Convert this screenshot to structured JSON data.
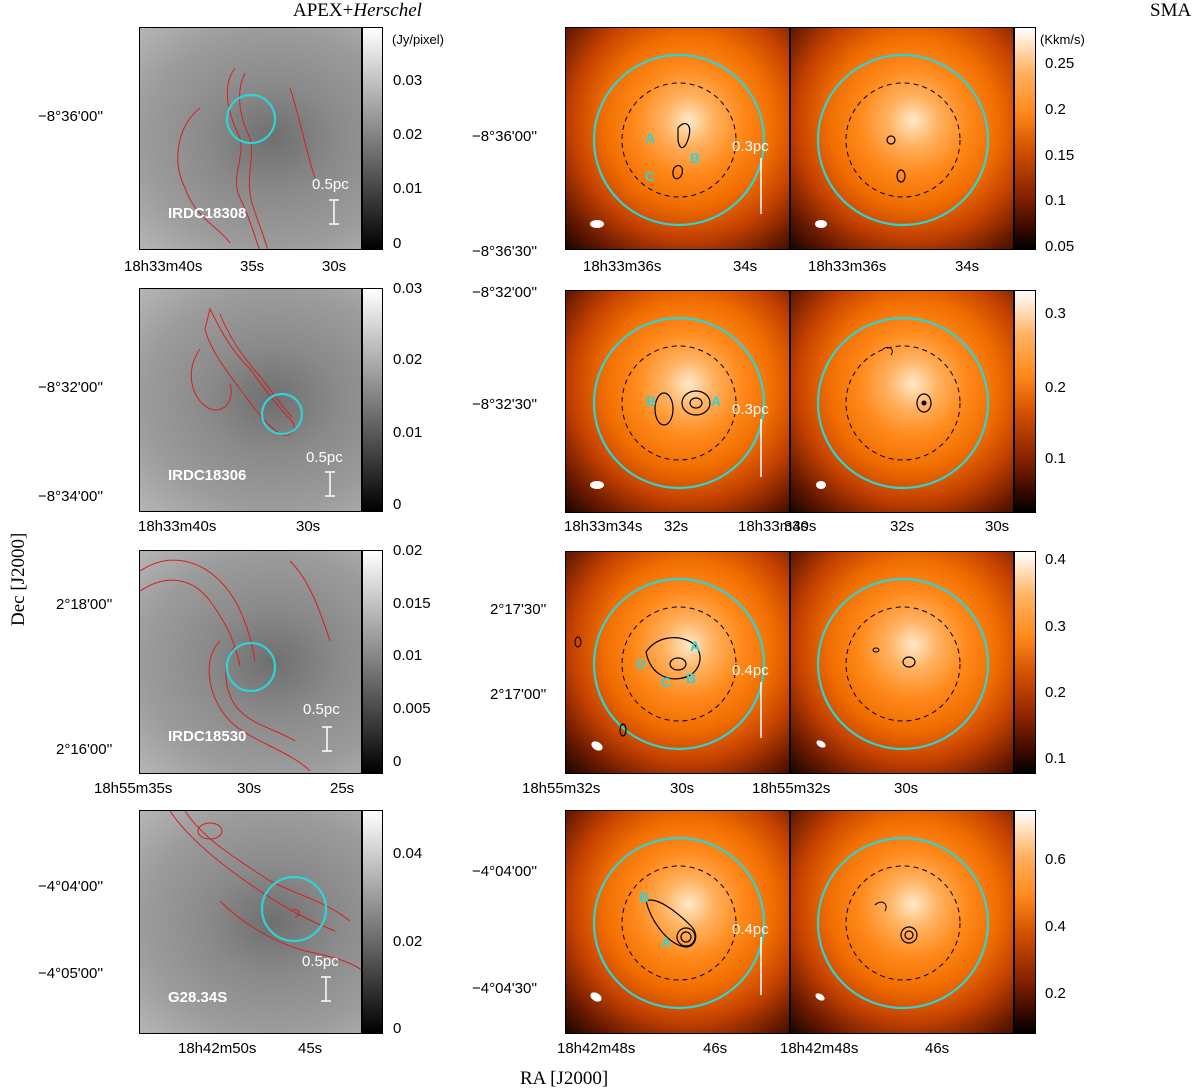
{
  "figure": {
    "header_left": "APEX+",
    "header_left_italic": "Herschel",
    "header_right": "SMA",
    "x_axis_label": "RA [J2000]",
    "y_axis_label": "Dec [J2000]",
    "cbar_unit_left": "(Jy/pixel)",
    "cbar_unit_right": "(Kkm/s)"
  },
  "rows": [
    {
      "source": "IRDC18308",
      "left_scale": "0.5pc",
      "right_scale": "0.3pc",
      "left_dec_ticks": [
        "−8°36'00''"
      ],
      "left_ra_ticks": [
        "18h33m40s",
        "35s",
        "30s"
      ],
      "left_cbar_ticks": [
        "0.03",
        "0.02",
        "0.01",
        "0"
      ],
      "right_dec_ticks": [
        "−8°36'00''",
        "−8°36'30''"
      ],
      "right_ra_ticks": [
        "18h33m36s",
        "34s",
        "18h33m36s",
        "34s"
      ],
      "right_cbar_ticks": [
        "0.25",
        "0.2",
        "0.15",
        "0.1",
        "0.05"
      ],
      "cores": [
        "A",
        "B",
        "C"
      ]
    },
    {
      "source": "IRDC18306",
      "left_scale": "0.5pc",
      "right_scale": "0.3pc",
      "left_dec_ticks": [
        "−8°32'00''",
        "−8°34'00''"
      ],
      "left_ra_ticks": [
        "18h33m40s",
        "30s"
      ],
      "left_cbar_ticks": [
        "0.03",
        "0.02",
        "0.01",
        "0"
      ],
      "right_dec_ticks": [
        "−8°32'00''",
        "−8°32'30''"
      ],
      "right_ra_ticks": [
        "18h33m34s",
        "32s",
        "18h33m30s",
        "34s",
        "32s",
        "30s"
      ],
      "right_cbar_ticks": [
        "0.3",
        "0.2",
        "0.1"
      ],
      "cores": [
        "B",
        "A"
      ]
    },
    {
      "source": "IRDC18530",
      "left_scale": "0.5pc",
      "right_scale": "0.4pc",
      "left_dec_ticks": [
        "2°18'00''",
        "2°16'00''"
      ],
      "left_ra_ticks": [
        "18h55m35s",
        "30s",
        "25s"
      ],
      "left_cbar_ticks": [
        "0.02",
        "0.015",
        "0.01",
        "0.005",
        "0"
      ],
      "right_dec_ticks": [
        "2°17'30''",
        "2°17'00''"
      ],
      "right_ra_ticks": [
        "18h55m32s",
        "30s",
        "18h55m32s",
        "30s"
      ],
      "right_cbar_ticks": [
        "0.4",
        "0.3",
        "0.2",
        "0.1"
      ],
      "cores": [
        "A",
        "D",
        "C",
        "B"
      ]
    },
    {
      "source": "G28.34S",
      "left_scale": "0.5pc",
      "right_scale": "0.4pc",
      "left_dec_ticks": [
        "−4°04'00''",
        "−4°05'00''"
      ],
      "left_ra_ticks": [
        "18h42m50s",
        "45s"
      ],
      "left_cbar_ticks": [
        "0.04",
        "0.02",
        "0"
      ],
      "right_dec_ticks": [
        "−4°04'00''",
        "−4°04'30''"
      ],
      "right_ra_ticks": [
        "18h42m48s",
        "46s",
        "18h42m48s",
        "46s"
      ],
      "right_cbar_ticks": [
        "0.6",
        "0.4",
        "0.2"
      ],
      "cores": [
        "B",
        "A"
      ]
    }
  ]
}
